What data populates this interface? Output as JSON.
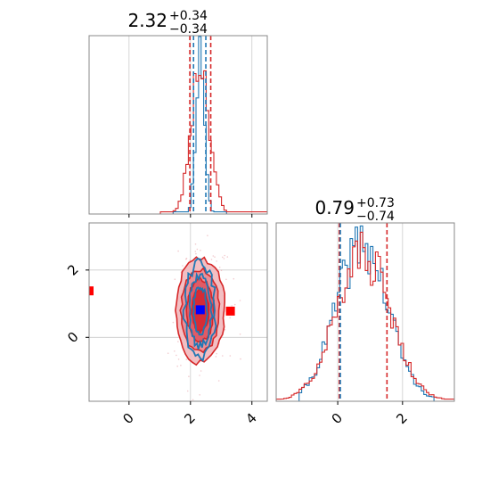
{
  "chart_data": [
    {
      "type": "histogram",
      "panel": "top-left",
      "title": {
        "value": "2.32",
        "plus": "+0.34",
        "minus": "−0.34"
      },
      "xlim": [
        -1.3,
        4.5
      ],
      "grid": true,
      "vlines": [
        {
          "x": 1.98,
          "color": "#d62728"
        },
        {
          "x": 2.1,
          "color": "#1f77b4"
        },
        {
          "x": 2.5,
          "color": "#1f77b4"
        },
        {
          "x": 2.66,
          "color": "#d62728"
        }
      ],
      "series": [
        {
          "color": "#1f77b4",
          "center": 2.32,
          "sigma": 0.14,
          "peak": 0.93,
          "start": 1.4,
          "end": 3.2,
          "seed": 11
        },
        {
          "color": "#d62728",
          "center": 2.32,
          "sigma": 0.3,
          "peak": 0.86,
          "start": 1.0,
          "end": 4.5,
          "seed": 23
        }
      ]
    },
    {
      "type": "contour",
      "panel": "bottom-left",
      "xlim": [
        -1.3,
        4.5
      ],
      "ylim": [
        -1.9,
        3.4
      ],
      "grid": true,
      "xticks": [
        "0",
        "2",
        "4"
      ],
      "yticks": [
        "0",
        "2"
      ],
      "markers": [
        {
          "x": 2.32,
          "y": 0.82,
          "color": "#0000ff"
        },
        {
          "x": 3.3,
          "y": 0.78,
          "color": "#ff0000"
        },
        {
          "x": -1.3,
          "y": 1.38,
          "color": "#ff0000"
        }
      ]
    },
    {
      "type": "histogram",
      "panel": "bottom-right",
      "title": {
        "value": "0.79",
        "plus": "+0.73",
        "minus": "−0.74"
      },
      "xlim": [
        -1.9,
        3.6
      ],
      "grid": true,
      "xticks": [
        "0",
        "2"
      ],
      "vlines": [
        {
          "x": 0.05,
          "color": "#d62728"
        },
        {
          "x": 0.08,
          "color": "#1f77b4"
        },
        {
          "x": 1.52,
          "color": "#d62728"
        }
      ],
      "series": [
        {
          "color": "#1f77b4",
          "center": 0.75,
          "sigma": 0.8,
          "peak": 0.88,
          "start": -1.2,
          "end": 3.0,
          "seed": 41
        },
        {
          "color": "#d62728",
          "center": 0.79,
          "sigma": 0.85,
          "peak": 0.82,
          "start": -1.9,
          "end": 3.6,
          "seed": 57
        }
      ]
    }
  ]
}
